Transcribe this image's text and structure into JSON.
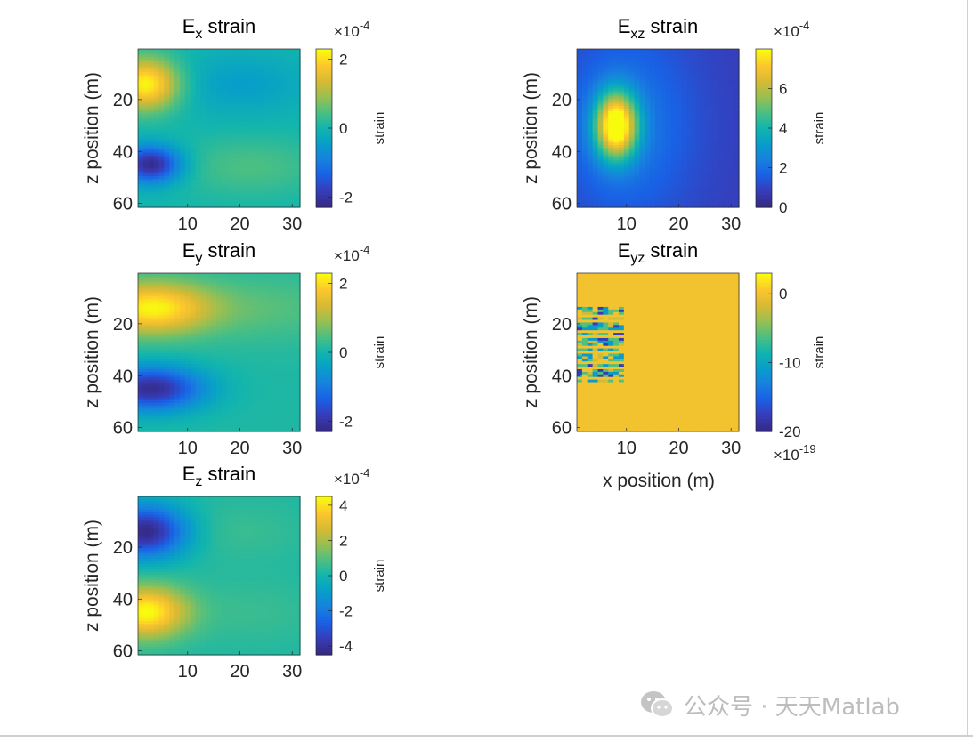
{
  "chart_data": [
    {
      "id": "ex",
      "type": "heatmap",
      "title": "E",
      "title_sub": "x",
      "title_suffix": "strain",
      "ylabel": "z position (m)",
      "xlabel": "",
      "xlim": [
        1,
        31
      ],
      "ylim": [
        1,
        61
      ],
      "xticks": [
        10,
        20,
        30
      ],
      "yticks": [
        20,
        40,
        60
      ],
      "colorbar": {
        "label": "strain",
        "exponent_base": "×10",
        "exponent": "-4",
        "exponent_position": "top",
        "ticks": [
          2,
          0,
          -2
        ],
        "tick_labels": [
          "2",
          "0",
          "-2"
        ],
        "clim": [
          -2.3,
          2.3
        ]
      },
      "field": {
        "baseline": 0.0,
        "blobs": [
          {
            "x": 2,
            "z": 14,
            "sx": 4.5,
            "sz": 7,
            "amp": 2.3
          },
          {
            "x": 3,
            "z": 45,
            "sx": 4.0,
            "sz": 5,
            "amp": -2.3
          },
          {
            "x": 20,
            "z": 14,
            "sx": 9,
            "sz": 8,
            "amp": -0.45
          },
          {
            "x": 22,
            "z": 46,
            "sx": 10,
            "sz": 8,
            "amp": 0.45
          }
        ]
      }
    },
    {
      "id": "exz",
      "type": "heatmap",
      "title": "E",
      "title_sub": "xz",
      "title_suffix": "strain",
      "ylabel": "z position (m)",
      "xlabel": "",
      "xlim": [
        1,
        31
      ],
      "ylim": [
        1,
        61
      ],
      "xticks": [
        10,
        20,
        30
      ],
      "yticks": [
        20,
        40,
        60
      ],
      "colorbar": {
        "label": "strain",
        "exponent_base": "×10",
        "exponent": "-4",
        "exponent_position": "top",
        "ticks": [
          6,
          4,
          2,
          0
        ],
        "tick_labels": [
          "6",
          "4",
          "2",
          "0"
        ],
        "clim": [
          0,
          8
        ]
      },
      "field": {
        "baseline": 0.8,
        "blobs": [
          {
            "x": 8,
            "z": 30,
            "sx": 2.8,
            "sz": 9,
            "amp": 7.2
          },
          {
            "x": 10,
            "z": 30,
            "sx": 9,
            "sz": 26,
            "amp": 1.4
          }
        ]
      }
    },
    {
      "id": "ey",
      "type": "heatmap",
      "title": "E",
      "title_sub": "y",
      "title_suffix": "strain",
      "ylabel": "z position (m)",
      "xlabel": "",
      "xlim": [
        1,
        31
      ],
      "ylim": [
        1,
        61
      ],
      "xticks": [
        10,
        20,
        30
      ],
      "yticks": [
        20,
        40,
        60
      ],
      "colorbar": {
        "label": "strain",
        "exponent_base": "×10",
        "exponent": "-4",
        "exponent_position": "top",
        "ticks": [
          2,
          0,
          -2
        ],
        "tick_labels": [
          "2",
          "0",
          "-2"
        ],
        "clim": [
          -2.3,
          2.3
        ]
      },
      "field": {
        "baseline": 0.1,
        "blobs": [
          {
            "x": 3,
            "z": 14,
            "sx": 8,
            "sz": 7,
            "amp": 2.1
          },
          {
            "x": 3,
            "z": 45,
            "sx": 7,
            "sz": 6,
            "amp": -2.3
          },
          {
            "x": 25,
            "z": 14,
            "sx": 12,
            "sz": 9,
            "amp": 0.4
          }
        ]
      }
    },
    {
      "id": "eyz",
      "type": "heatmap",
      "title": "E",
      "title_sub": "yz",
      "title_suffix": "strain",
      "ylabel": "z position (m)",
      "xlabel": "x position (m)",
      "xlim": [
        1,
        31
      ],
      "ylim": [
        1,
        61
      ],
      "xticks": [
        10,
        20,
        30
      ],
      "yticks": [
        20,
        40,
        60
      ],
      "colorbar": {
        "label": "strain",
        "exponent_base": "×10",
        "exponent": "-19",
        "exponent_position": "bottom",
        "ticks": [
          0,
          -10,
          -20
        ],
        "tick_labels": [
          "0",
          "-10",
          "-20"
        ],
        "clim": [
          -20,
          3
        ]
      },
      "field": {
        "baseline": 0.0,
        "blobs": [],
        "noise": {
          "x_range": [
            1,
            9
          ],
          "z_range": [
            14,
            43
          ],
          "seed": 7
        }
      }
    },
    {
      "id": "ez",
      "type": "heatmap",
      "title": "E",
      "title_sub": "z",
      "title_suffix": "strain",
      "ylabel": "z position (m)",
      "xlabel": "",
      "xlim": [
        1,
        31
      ],
      "ylim": [
        1,
        61
      ],
      "xticks": [
        10,
        20,
        30
      ],
      "yticks": [
        20,
        40,
        60
      ],
      "colorbar": {
        "label": "strain",
        "exponent_base": "×10",
        "exponent": "-4",
        "exponent_position": "top",
        "ticks": [
          4,
          2,
          0,
          -2,
          -4
        ],
        "tick_labels": [
          "4",
          "2",
          "0",
          "-2",
          "-4"
        ],
        "clim": [
          -4.5,
          4.5
        ]
      },
      "field": {
        "baseline": 0.2,
        "blobs": [
          {
            "x": 2,
            "z": 14,
            "sx": 5.5,
            "sz": 7,
            "amp": -4.7
          },
          {
            "x": 2,
            "z": 45,
            "sx": 5.5,
            "sz": 7,
            "amp": 4.3
          },
          {
            "x": 20,
            "z": 14,
            "sx": 9,
            "sz": 8,
            "amp": 0.4
          },
          {
            "x": 22,
            "z": 45,
            "sx": 10,
            "sz": 9,
            "amp": 0.4
          }
        ]
      }
    }
  ],
  "watermark": {
    "text": "公众号 · 天天Matlab",
    "icon": "wechat-icon"
  }
}
